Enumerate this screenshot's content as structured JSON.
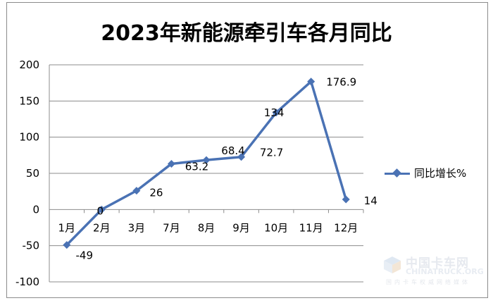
{
  "chart_data": {
    "type": "line",
    "title": "2023年新能源牵引车各月同比",
    "categories": [
      "1月",
      "2月",
      "3月",
      "7月",
      "8月",
      "9月",
      "10月",
      "11月",
      "12月"
    ],
    "series": [
      {
        "name": "同比增长%",
        "values": [
          -49,
          0,
          26,
          63.2,
          68.4,
          72.7,
          134,
          176.9,
          14
        ],
        "labels": [
          "-49",
          "0",
          "26",
          "63.2",
          "68.4",
          "72.7",
          "134",
          "176.9",
          "14"
        ],
        "color": "#4a72b4"
      }
    ],
    "yticks": [
      "200",
      "150",
      "100",
      "50",
      "0",
      "-50",
      "-100"
    ],
    "ylim": [
      -100,
      200
    ],
    "grid": true,
    "legend_position": "right"
  },
  "watermark": {
    "cn": "中国卡车网",
    "en": "CHINATRUCK.ORG",
    "sub": "国内卡车权威网络媒体"
  }
}
